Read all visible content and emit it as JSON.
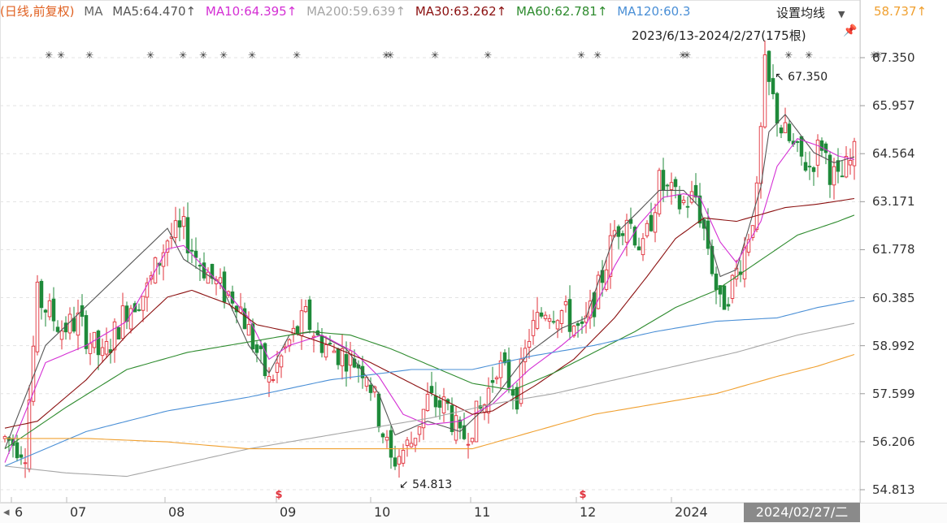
{
  "header": {
    "label": "(日线,前复权)",
    "ma_title": "MA",
    "ma5": "MA5:64.470↑",
    "ma10": "MA10:64.395↑",
    "ma200": "MA200:59.639↑",
    "ma30": "MA30:63.262↑",
    "ma60": "MA60:62.781↑",
    "ma120": "MA120:60.3",
    "ma250_tail": "58.737↑",
    "settings_label": "设置均线",
    "date_range": "2023/6/13-2024/2/27(175根)"
  },
  "colors": {
    "up": "#e0303a",
    "down": "#1f8a3a",
    "ma5": "#555555",
    "ma10": "#d42fd4",
    "ma30": "#8b1010",
    "ma60": "#2e8b2e",
    "ma120": "#4a8fd6",
    "ma200": "#a6a6a6",
    "ma250": "#f0a030",
    "label": "#e06020"
  },
  "chart_data": {
    "type": "candlestick",
    "ylim": [
      54.813,
      67.35
    ],
    "yticks": [
      "67.350",
      "65.957",
      "64.564",
      "63.171",
      "61.778",
      "60.385",
      "58.992",
      "57.599",
      "56.206",
      "54.813"
    ],
    "xlabels": [
      "6",
      "07",
      "08",
      "09",
      "10",
      "11",
      "12",
      "2024"
    ],
    "cursor_date": "2024/02/27/二",
    "annotations": {
      "high": "67.350",
      "low": "54.813"
    },
    "signal_marker": "$",
    "candle_anchors": [
      [
        0,
        56.3
      ],
      [
        5,
        56.0
      ],
      [
        8,
        60.4
      ],
      [
        14,
        59.5
      ],
      [
        18,
        59.7
      ],
      [
        24,
        58.6
      ],
      [
        30,
        60.1
      ],
      [
        35,
        60.6
      ],
      [
        40,
        62.1
      ],
      [
        44,
        62.3
      ],
      [
        47,
        61.6
      ],
      [
        53,
        60.6
      ],
      [
        57,
        60.4
      ],
      [
        60,
        59.4
      ],
      [
        65,
        57.9
      ],
      [
        70,
        59.1
      ],
      [
        74,
        59.8
      ],
      [
        77,
        59.2
      ],
      [
        80,
        58.9
      ],
      [
        84,
        58.7
      ],
      [
        89,
        58.3
      ],
      [
        95,
        55.6
      ],
      [
        100,
        56.2
      ],
      [
        104,
        57.4
      ],
      [
        109,
        57.2
      ],
      [
        112,
        56.2
      ],
      [
        118,
        57.3
      ],
      [
        121,
        58.5
      ],
      [
        126,
        57.6
      ],
      [
        129,
        59.3
      ],
      [
        133,
        60.1
      ],
      [
        137,
        60.0
      ],
      [
        142,
        59.3
      ],
      [
        146,
        60.6
      ],
      [
        150,
        62.3
      ],
      [
        153,
        62.8
      ],
      [
        157,
        61.7
      ],
      [
        161,
        63.7
      ],
      [
        166,
        63.1
      ],
      [
        170,
        63.3
      ],
      [
        173,
        61.9
      ],
      [
        176,
        60.1
      ],
      [
        179,
        60.8
      ],
      [
        182,
        61.8
      ],
      [
        185,
        63.3
      ],
      [
        187,
        67.0
      ],
      [
        188,
        66.5
      ],
      [
        191,
        65.3
      ],
      [
        195,
        64.5
      ],
      [
        198,
        64.2
      ],
      [
        201,
        64.9
      ],
      [
        203,
        64.1
      ],
      [
        205,
        63.7
      ],
      [
        208,
        64.3
      ],
      [
        209,
        64.5
      ]
    ],
    "series": [
      {
        "name": "MA5",
        "points": [
          [
            0,
            56.0
          ],
          [
            10,
            59.0
          ],
          [
            40,
            62.4
          ],
          [
            44,
            61.5
          ],
          [
            53,
            60.8
          ],
          [
            60,
            59.0
          ],
          [
            65,
            58.2
          ],
          [
            70,
            59.3
          ],
          [
            76,
            59.4
          ],
          [
            84,
            58.9
          ],
          [
            92,
            57.6
          ],
          [
            96,
            56.4
          ],
          [
            104,
            56.8
          ],
          [
            112,
            56.5
          ],
          [
            120,
            57.4
          ],
          [
            129,
            58.8
          ],
          [
            137,
            59.5
          ],
          [
            143,
            59.8
          ],
          [
            150,
            62.2
          ],
          [
            156,
            62.9
          ],
          [
            161,
            63.5
          ],
          [
            167,
            63.5
          ],
          [
            171,
            63.0
          ],
          [
            176,
            61.0
          ],
          [
            180,
            61.2
          ],
          [
            186,
            63.6
          ],
          [
            188,
            65.2
          ],
          [
            192,
            65.7
          ],
          [
            199,
            64.6
          ],
          [
            204,
            64.3
          ],
          [
            209,
            64.47
          ]
        ]
      },
      {
        "name": "MA10",
        "points": [
          [
            0,
            55.6
          ],
          [
            10,
            58.5
          ],
          [
            20,
            59.0
          ],
          [
            30,
            59.7
          ],
          [
            40,
            61.8
          ],
          [
            44,
            61.9
          ],
          [
            52,
            60.9
          ],
          [
            60,
            59.8
          ],
          [
            65,
            58.6
          ],
          [
            70,
            59.0
          ],
          [
            78,
            59.3
          ],
          [
            86,
            58.8
          ],
          [
            92,
            58.1
          ],
          [
            98,
            57.0
          ],
          [
            104,
            56.7
          ],
          [
            112,
            56.8
          ],
          [
            120,
            57.3
          ],
          [
            129,
            58.3
          ],
          [
            137,
            59.0
          ],
          [
            143,
            59.6
          ],
          [
            150,
            61.3
          ],
          [
            156,
            62.5
          ],
          [
            162,
            63.3
          ],
          [
            167,
            63.4
          ],
          [
            171,
            63.3
          ],
          [
            176,
            62.0
          ],
          [
            180,
            61.4
          ],
          [
            186,
            62.6
          ],
          [
            190,
            64.2
          ],
          [
            195,
            65.0
          ],
          [
            200,
            64.8
          ],
          [
            205,
            64.5
          ],
          [
            209,
            64.395
          ]
        ]
      },
      {
        "name": "MA30",
        "points": [
          [
            0,
            56.6
          ],
          [
            8,
            56.8
          ],
          [
            20,
            58.0
          ],
          [
            30,
            59.3
          ],
          [
            40,
            60.4
          ],
          [
            46,
            60.6
          ],
          [
            55,
            60.2
          ],
          [
            62,
            59.6
          ],
          [
            70,
            59.4
          ],
          [
            80,
            59.0
          ],
          [
            90,
            58.5
          ],
          [
            100,
            57.9
          ],
          [
            110,
            57.3
          ],
          [
            115,
            57.0
          ],
          [
            120,
            57.1
          ],
          [
            130,
            57.8
          ],
          [
            140,
            58.6
          ],
          [
            150,
            59.8
          ],
          [
            158,
            61.0
          ],
          [
            165,
            62.1
          ],
          [
            172,
            62.7
          ],
          [
            180,
            62.6
          ],
          [
            186,
            62.8
          ],
          [
            192,
            63.0
          ],
          [
            200,
            63.1
          ],
          [
            209,
            63.262
          ]
        ]
      },
      {
        "name": "MA60",
        "points": [
          [
            0,
            56.0
          ],
          [
            15,
            57.2
          ],
          [
            30,
            58.3
          ],
          [
            45,
            58.8
          ],
          [
            60,
            59.1
          ],
          [
            75,
            59.4
          ],
          [
            85,
            59.3
          ],
          [
            95,
            58.9
          ],
          [
            105,
            58.4
          ],
          [
            115,
            57.9
          ],
          [
            125,
            57.7
          ],
          [
            135,
            58.2
          ],
          [
            145,
            58.8
          ],
          [
            155,
            59.4
          ],
          [
            165,
            60.1
          ],
          [
            175,
            60.6
          ],
          [
            185,
            61.4
          ],
          [
            195,
            62.2
          ],
          [
            205,
            62.6
          ],
          [
            209,
            62.781
          ]
        ]
      },
      {
        "name": "MA120",
        "points": [
          [
            0,
            55.5
          ],
          [
            20,
            56.5
          ],
          [
            40,
            57.1
          ],
          [
            60,
            57.5
          ],
          [
            80,
            58.0
          ],
          [
            100,
            58.3
          ],
          [
            115,
            58.3
          ],
          [
            130,
            58.7
          ],
          [
            145,
            59.0
          ],
          [
            160,
            59.4
          ],
          [
            175,
            59.7
          ],
          [
            190,
            59.8
          ],
          [
            200,
            60.1
          ],
          [
            209,
            60.3
          ]
        ]
      },
      {
        "name": "MA200",
        "points": [
          [
            0,
            55.5
          ],
          [
            15,
            55.3
          ],
          [
            30,
            55.2
          ],
          [
            45,
            55.6
          ],
          [
            60,
            56.0
          ],
          [
            75,
            56.3
          ],
          [
            90,
            56.6
          ],
          [
            105,
            56.9
          ],
          [
            120,
            57.3
          ],
          [
            135,
            57.6
          ],
          [
            150,
            58.0
          ],
          [
            165,
            58.4
          ],
          [
            180,
            58.8
          ],
          [
            195,
            59.3
          ],
          [
            209,
            59.639
          ]
        ]
      },
      {
        "name": "MA250",
        "points": [
          [
            0,
            56.3
          ],
          [
            20,
            56.3
          ],
          [
            40,
            56.2
          ],
          [
            60,
            56.0
          ],
          [
            80,
            56.0
          ],
          [
            100,
            56.0
          ],
          [
            115,
            56.0
          ],
          [
            130,
            56.5
          ],
          [
            145,
            57.0
          ],
          [
            160,
            57.3
          ],
          [
            175,
            57.6
          ],
          [
            190,
            58.1
          ],
          [
            200,
            58.4
          ],
          [
            209,
            58.737
          ]
        ]
      }
    ]
  }
}
